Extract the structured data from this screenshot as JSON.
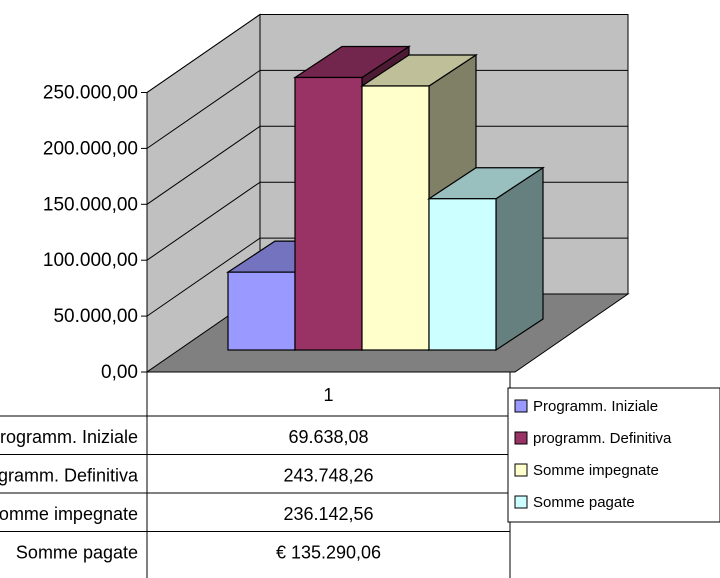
{
  "chart_data": {
    "type": "bar",
    "categories": [
      "1"
    ],
    "ylim": [
      0,
      250000
    ],
    "yticks": [
      "0,00",
      "50.000,00",
      "100.000,00",
      "150.000,00",
      "200.000,00",
      "250.000,00"
    ],
    "grid": true,
    "legend_position": "right",
    "series": [
      {
        "name": "Programm. Iniziale",
        "table_label": "Programm. Iniziale",
        "values": [
          69638.08
        ],
        "display": "69.638,08",
        "color": "#9999FF"
      },
      {
        "name": "programm. Definitiva",
        "table_label": "Programm. Definitiva",
        "values": [
          243748.26
        ],
        "display": "243.748,26",
        "color": "#993366"
      },
      {
        "name": "Somme impegnate",
        "table_label": "Somme impegnate",
        "values": [
          236142.56
        ],
        "display": "236.142,56",
        "color": "#FFFFCC"
      },
      {
        "name": "Somme pagate",
        "table_label": "Somme pagate",
        "values": [
          135290.06
        ],
        "display": "€ 135.290,06",
        "color": "#CCFFFF"
      }
    ]
  },
  "colors": {
    "floor": "#808080",
    "wall": "#C0C0C0",
    "grid": "#000000"
  }
}
